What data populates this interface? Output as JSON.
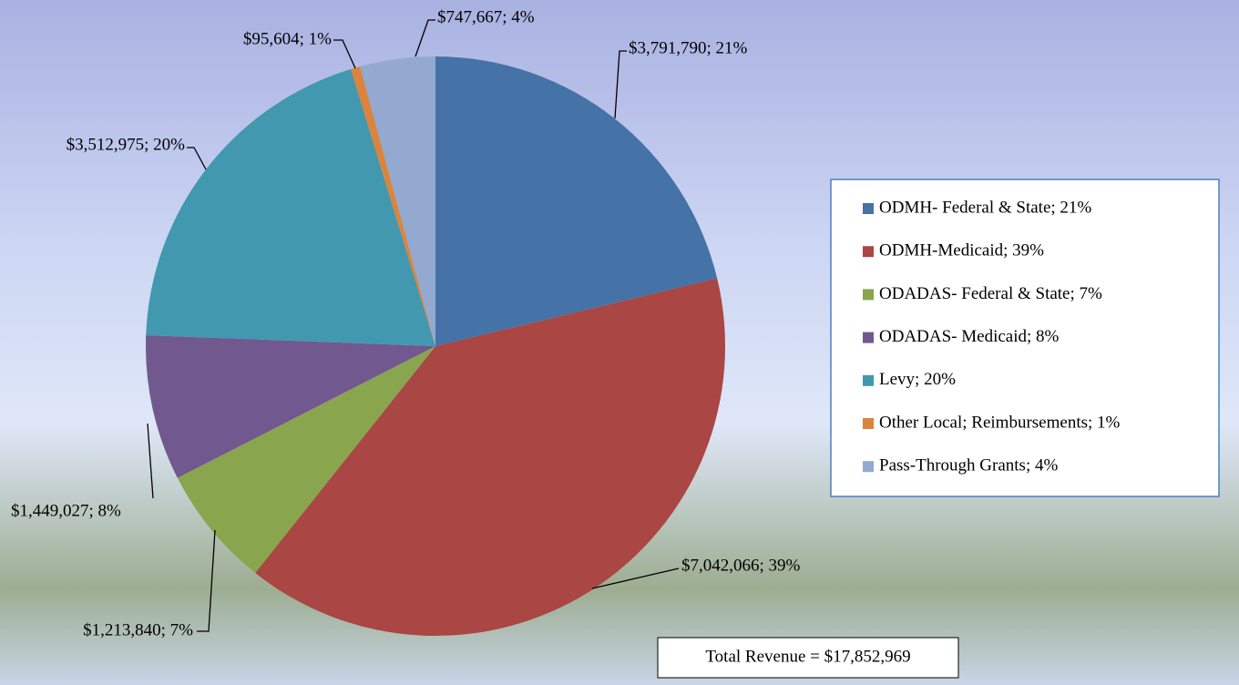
{
  "chart_data": {
    "type": "pie",
    "categories": [
      "ODMH- Federal & State; 21%",
      "ODMH-Medicaid; 39%",
      "ODADAS- Federal & State; 7%",
      "ODADAS- Medicaid; 8%",
      "Levy; 20%",
      "Other Local; Reimbursements; 1%",
      "Pass-Through Grants; 4%"
    ],
    "values": [
      3791790,
      7042066,
      1213840,
      1449027,
      3512975,
      95604,
      747667
    ],
    "value_labels": [
      "$3,791,790;  21%",
      "$7,042,066; 39%",
      "$1,213,840; 7%",
      "$1,449,027; 8%",
      "$3,512,975; 20%",
      "$95,604; 1%",
      "$747,667; 4%"
    ],
    "colors": [
      "#4572a7",
      "#aa4643",
      "#89a54e",
      "#71588f",
      "#4198af",
      "#db843d",
      "#93a9cf"
    ],
    "legend": "right",
    "annotation": "Total Revenue = $17,852,969"
  }
}
